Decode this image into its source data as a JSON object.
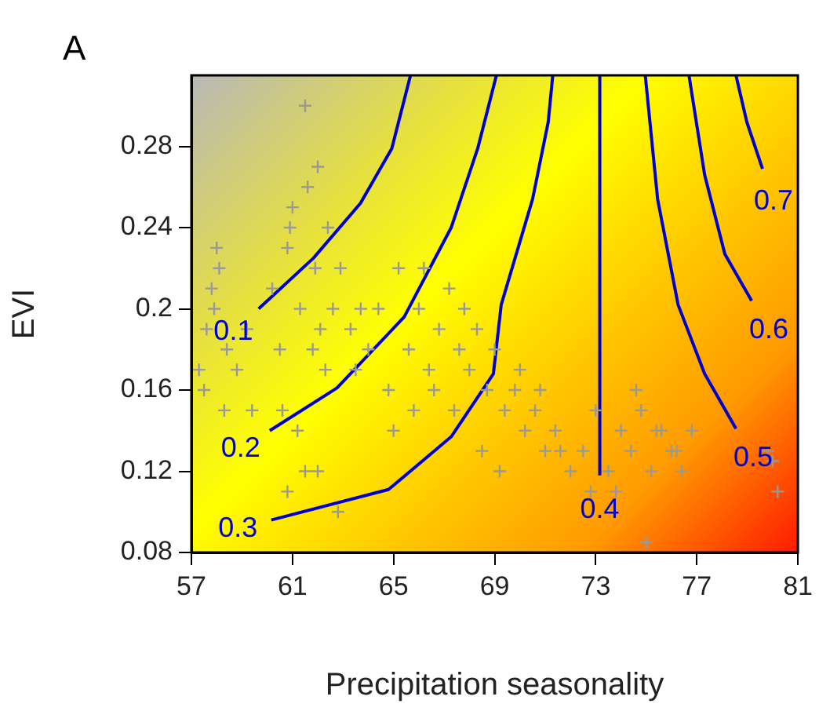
{
  "chart_data": {
    "type": "scatter",
    "title": "A",
    "xlabel": "Precipitation seasonality",
    "ylabel": "EVI",
    "xlim": [
      57,
      81
    ],
    "xticks": [
      57,
      61,
      65,
      69,
      73,
      77,
      81
    ],
    "ylim": [
      0.08,
      0.315
    ],
    "yticks": [
      0.08,
      0.12,
      0.16,
      0.2,
      0.24,
      0.28
    ],
    "series": [
      {
        "color": "#999999",
        "marker": "cross",
        "x": [
          57.3,
          57.6,
          57.8,
          58.1,
          58.4,
          57.5,
          57.9,
          58.3,
          58.8,
          58.0,
          59.2,
          59.4,
          60.2,
          60.5,
          60.8,
          61.0,
          61.3,
          61.6,
          61.9,
          62.1,
          62.3,
          62.6,
          60.6,
          61.2,
          61.8,
          62.4,
          62.9,
          63.3,
          63.7,
          62.0,
          61.5,
          60.9,
          63.5,
          64.0,
          64.4,
          64.8,
          65.2,
          65.6,
          66.0,
          66.4,
          66.8,
          67.2,
          67.6,
          65.0,
          65.8,
          66.6,
          67.4,
          68.0,
          68.3,
          68.7,
          69.0,
          69.4,
          69.8,
          70.2,
          70.6,
          71.0,
          71.4,
          68.5,
          69.2,
          70.0,
          70.8,
          71.6,
          72.0,
          72.5,
          73.0,
          73.5,
          74.0,
          74.4,
          74.8,
          75.2,
          75.6,
          76.0,
          76.4,
          73.8,
          74.6,
          75.4,
          76.2,
          60.8,
          62.8,
          62.0,
          75.0,
          72.8,
          76.8,
          80.0,
          80.2,
          79.8,
          67.8,
          66.2,
          61.5
        ],
        "values": [
          0.17,
          0.19,
          0.21,
          0.22,
          0.18,
          0.16,
          0.2,
          0.15,
          0.17,
          0.23,
          0.19,
          0.15,
          0.21,
          0.18,
          0.23,
          0.25,
          0.2,
          0.26,
          0.22,
          0.19,
          0.17,
          0.2,
          0.15,
          0.14,
          0.18,
          0.24,
          0.22,
          0.19,
          0.2,
          0.27,
          0.3,
          0.24,
          0.17,
          0.18,
          0.2,
          0.16,
          0.22,
          0.18,
          0.2,
          0.17,
          0.19,
          0.21,
          0.18,
          0.14,
          0.15,
          0.16,
          0.15,
          0.17,
          0.19,
          0.16,
          0.18,
          0.15,
          0.16,
          0.14,
          0.15,
          0.13,
          0.14,
          0.13,
          0.12,
          0.17,
          0.16,
          0.13,
          0.12,
          0.13,
          0.15,
          0.12,
          0.14,
          0.13,
          0.15,
          0.12,
          0.14,
          0.13,
          0.12,
          0.11,
          0.16,
          0.14,
          0.13,
          0.11,
          0.1,
          0.12,
          0.085,
          0.11,
          0.14,
          0.125,
          0.11,
          0.13,
          0.2,
          0.22,
          0.12
        ]
      },
      {
        "type": "line",
        "name": "0.1",
        "color": "#0000cc",
        "marker": "none",
        "line_style": "solid",
        "x": [
          59.66,
          61.83,
          63.69,
          64.93,
          65.67
        ],
        "values": [
          0.2,
          0.225,
          0.252,
          0.279,
          0.315
        ]
      },
      {
        "type": "line",
        "name": "0.2",
        "color": "#0000cc",
        "marker": "none",
        "line_style": "solid",
        "x": [
          60.1,
          62.76,
          65.42,
          67.28,
          68.33,
          69.07
        ],
        "values": [
          0.14,
          0.161,
          0.196,
          0.24,
          0.279,
          0.315
        ]
      },
      {
        "type": "line",
        "name": "0.3",
        "color": "#0000cc",
        "marker": "none",
        "line_style": "solid",
        "x": [
          60.16,
          64.8,
          67.28,
          68.95,
          69.26,
          70.5,
          71.12,
          71.3
        ],
        "values": [
          0.096,
          0.111,
          0.137,
          0.168,
          0.202,
          0.254,
          0.292,
          0.315
        ]
      },
      {
        "type": "line",
        "name": "0.4",
        "color": "#0000cc",
        "marker": "none",
        "line_style": "solid",
        "x": [
          73.16,
          73.16
        ],
        "values": [
          0.118,
          0.315
        ]
      },
      {
        "type": "line",
        "name": "0.5",
        "color": "#0000cc",
        "marker": "none",
        "line_style": "solid",
        "x": [
          74.96,
          75.45,
          76.26,
          77.31,
          78.55
        ],
        "values": [
          0.315,
          0.254,
          0.202,
          0.168,
          0.141
        ]
      },
      {
        "type": "line",
        "name": "0.6",
        "color": "#0000cc",
        "marker": "none",
        "line_style": "solid",
        "x": [
          76.69,
          77.31,
          78.11,
          79.17
        ],
        "values": [
          0.315,
          0.266,
          0.227,
          0.204
        ]
      },
      {
        "type": "line",
        "name": "0.7",
        "color": "#0000cc",
        "marker": "none",
        "line_style": "solid",
        "x": [
          78.55,
          78.98,
          79.6
        ],
        "values": [
          0.315,
          0.292,
          0.269
        ]
      }
    ]
  }
}
